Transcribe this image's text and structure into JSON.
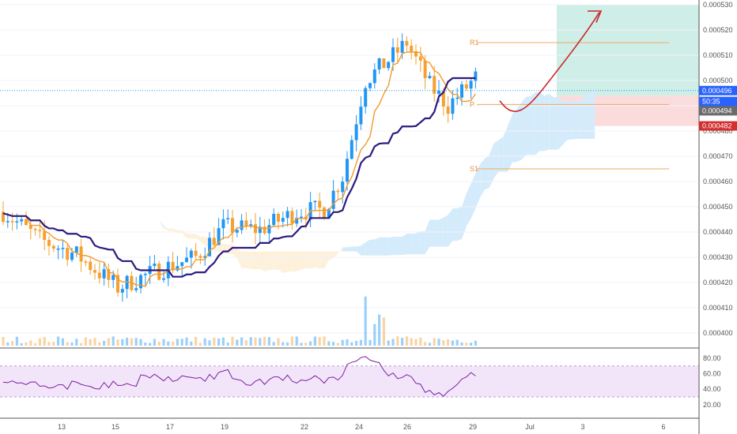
{
  "chart_data": {
    "type": "candlestick",
    "price_axis": {
      "ticks": [
        "0.000530",
        "0.000520",
        "0.000510",
        "0.000500",
        "0.000490",
        "0.000480",
        "0.000470",
        "0.000460",
        "0.000450",
        "0.000440",
        "0.000430",
        "0.000420",
        "0.000410",
        "0.000400"
      ],
      "range": [
        0.0003965,
        0.0005308
      ]
    },
    "date_axis": {
      "ticks": [
        "13",
        "15",
        "17",
        "19",
        "22",
        "24",
        "26",
        "29",
        "Jul",
        "3",
        "6"
      ]
    },
    "price_tags": [
      {
        "text": "0.000496",
        "bg": "#2962ff",
        "fg": "#ffffff",
        "price": 0.000496
      },
      {
        "text": "50:35",
        "bg": "#2962ff",
        "fg": "#ffffff",
        "price": 0.000492
      },
      {
        "text": "0.000494",
        "bg": "#6b6b6b",
        "fg": "#ffffff",
        "price": 0.000488
      },
      {
        "text": "0.000482",
        "bg": "#d32f2f",
        "fg": "#ffffff",
        "price": 0.000482
      }
    ],
    "pivots": [
      {
        "label": "R1",
        "price": 0.000515
      },
      {
        "label": "P",
        "price": 0.0004905
      },
      {
        "label": "S1",
        "price": 0.000465
      }
    ],
    "position": {
      "entry": 0.000494,
      "target": 0.00053,
      "stop": 0.000482
    },
    "rsi": {
      "ticks": [
        "80.00",
        "60.00",
        "40.00",
        "20.00"
      ],
      "upper": 70,
      "lower": 30
    },
    "colors": {
      "up": "#2196f3",
      "down": "#f5a030",
      "base_line": "#2d1b7e",
      "conversion_line": "#f29a2e",
      "cloud_bull": "#d4ebfb",
      "cloud_bear": "#fdf1dc",
      "target_zone": "#cfeee7",
      "stop_zone": "#fbdcdc",
      "rsi": "#7b1fa2",
      "rsi_band": "#f3e5f9",
      "arrow": "#c62828"
    }
  }
}
